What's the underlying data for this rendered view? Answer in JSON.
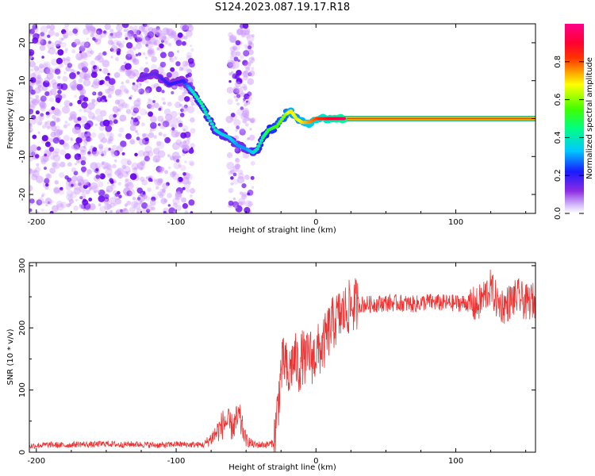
{
  "title": "S124.2023.087.19.17.R18",
  "colors": {
    "snr_line": "#ee3333",
    "scatter_dense": "#6600ee",
    "scatter_light": "#cc99ff",
    "frame": "#000000"
  },
  "colorbar": {
    "label": "Normalized spectral amplitude",
    "range": [
      0,
      1
    ],
    "ticks": [
      "0.0",
      "0.2",
      "0.4",
      "0.6",
      "0.8"
    ],
    "tick_values": [
      0.0,
      0.2,
      0.4,
      0.6,
      0.8
    ],
    "colormap": "rainbow (purple-blue-cyan-green-yellow-red-magenta)"
  },
  "chart_data": [
    {
      "type": "heatmap",
      "title": "S124.2023.087.19.17.R18",
      "xlabel": "Height of straight line (km)",
      "ylabel": "Frequency (Hz)",
      "xlim": [
        -205,
        157
      ],
      "ylim": [
        -25,
        25
      ],
      "x_ticks": [
        "-200",
        "-100",
        "0",
        "100"
      ],
      "x_tick_values": [
        -200,
        -100,
        0,
        100
      ],
      "y_ticks": [
        "20",
        "10",
        "0",
        "-10",
        "-20"
      ],
      "y_tick_values": [
        20,
        10,
        0,
        -10,
        -20
      ],
      "noise_region": {
        "x_range": [
          -205,
          -45
        ],
        "amplitude": "low (0.0-0.2)"
      },
      "signal_trace": {
        "x": [
          -125,
          -115,
          -105,
          -95,
          -88,
          -82,
          -78,
          -72,
          -68,
          -62,
          -56,
          -50,
          -45,
          -42,
          -38,
          -34,
          -28,
          -22,
          -18,
          -14,
          -10,
          -5,
          0,
          5,
          10,
          20,
          40,
          60,
          80,
          100,
          120,
          140,
          157
        ],
        "y": [
          11,
          12,
          9,
          10,
          7,
          4,
          1,
          -3,
          -4,
          -5,
          -7,
          -8,
          -9,
          -8,
          -5,
          -3,
          -2,
          1,
          2,
          0,
          -1,
          -1,
          0,
          0,
          0,
          0,
          0,
          0,
          0,
          0,
          0,
          0,
          0
        ],
        "amplitude": [
          0.15,
          0.15,
          0.2,
          0.2,
          0.4,
          0.45,
          0.4,
          0.4,
          0.35,
          0.35,
          0.3,
          0.3,
          0.35,
          0.4,
          0.45,
          0.5,
          0.55,
          0.6,
          0.7,
          0.65,
          0.7,
          0.75,
          0.8,
          0.85,
          0.9,
          0.95,
          0.95,
          0.95,
          0.95,
          0.95,
          0.95,
          0.95,
          0.95
        ]
      }
    },
    {
      "type": "line",
      "xlabel": "Height of straight line (km)",
      "ylabel": "SNR (10 * v/v)",
      "xlim": [
        -205,
        157
      ],
      "ylim": [
        0,
        305
      ],
      "x_ticks": [
        "-200",
        "-100",
        "0",
        "100"
      ],
      "x_tick_values": [
        -200,
        -100,
        0,
        100
      ],
      "y_ticks": [
        "300",
        "200",
        "100",
        "0"
      ],
      "y_tick_values": [
        300,
        200,
        100,
        0
      ],
      "series": [
        {
          "x": [
            -205,
            -190,
            -180,
            -170,
            -160,
            -150,
            -140,
            -130,
            -120,
            -110,
            -100,
            -90,
            -80,
            -75,
            -70,
            -65,
            -60,
            -55,
            -50,
            -45,
            -40,
            -35,
            -30,
            -27,
            -25,
            -22,
            -20,
            -18,
            -15,
            -12,
            -10,
            -7,
            -5,
            -2,
            0,
            5,
            10,
            15,
            20,
            25,
            30,
            40,
            50,
            60,
            70,
            80,
            90,
            100,
            110,
            115,
            120,
            125,
            130,
            135,
            140,
            145,
            150,
            157
          ],
          "y": [
            10,
            12,
            11,
            13,
            12,
            14,
            12,
            13,
            12,
            11,
            13,
            12,
            12,
            22,
            35,
            50,
            40,
            55,
            20,
            12,
            12,
            12,
            15,
            80,
            130,
            150,
            110,
            140,
            150,
            135,
            155,
            145,
            160,
            150,
            160,
            170,
            200,
            215,
            225,
            235,
            238,
            238,
            240,
            240,
            238,
            242,
            240,
            240,
            240,
            235,
            250,
            265,
            240,
            235,
            245,
            250,
            240,
            245
          ]
        }
      ]
    }
  ]
}
